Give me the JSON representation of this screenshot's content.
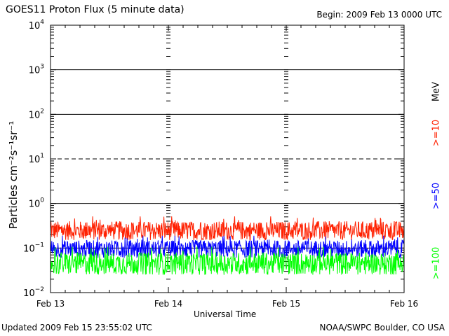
{
  "header": {
    "title": "GOES11 Proton Flux (5 minute data)",
    "begin": "Begin: 2009 Feb 13 0000 UTC"
  },
  "footer": {
    "updated": "Updated 2009 Feb 15 23:55:02 UTC",
    "credit": "NOAA/SWPC Boulder, CO USA"
  },
  "right_labels": {
    "ge10": ">=10",
    "ge50": ">=50",
    "ge100": ">=100",
    "unit": "MeV"
  },
  "chart_data": {
    "type": "line",
    "title": "GOES11 Proton Flux (5 minute data)",
    "xlabel": "Universal Time",
    "ylabel": "Particles cm⁻²s⁻¹sr⁻¹",
    "yscale": "log",
    "ylim": [
      0.01,
      10000
    ],
    "ytick_exponents": [
      4,
      3,
      2,
      1,
      0,
      -1,
      -2
    ],
    "xlim": [
      "2009-02-13 00:00",
      "2009-02-16 00:00"
    ],
    "x_ticks": [
      "Feb 13",
      "Feb 14",
      "Feb 15",
      "Feb 16"
    ],
    "reference_lines": [
      {
        "value": 1000,
        "style": "solid"
      },
      {
        "value": 100,
        "style": "solid"
      },
      {
        "value": 10,
        "style": "dashed"
      },
      {
        "value": 1,
        "style": "solid"
      },
      {
        "value": 0.1,
        "style": "solid"
      }
    ],
    "series": [
      {
        "name": ">=10",
        "color": "#ff2000",
        "level_min": 0.15,
        "level_max": 0.4,
        "noise_note": "fluctuating background"
      },
      {
        "name": ">=50",
        "color": "#0000ff",
        "level_min": 0.06,
        "level_max": 0.15
      },
      {
        "name": ">=100",
        "color": "#00ff00",
        "level_min": 0.025,
        "level_max": 0.08
      }
    ]
  }
}
